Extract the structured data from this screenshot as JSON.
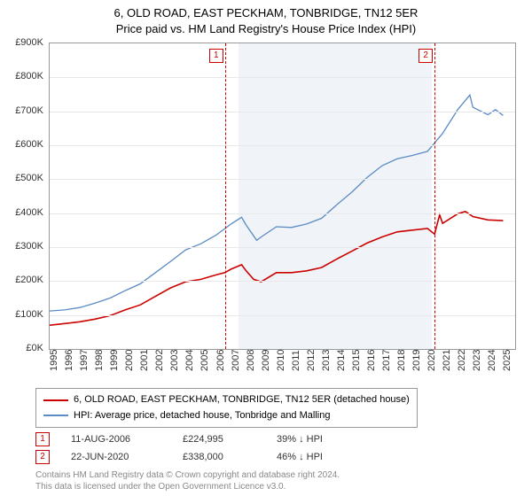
{
  "title_line1": "6, OLD ROAD, EAST PECKHAM, TONBRIDGE, TN12 5ER",
  "title_line2": "Price paid vs. HM Land Registry's House Price Index (HPI)",
  "chart": {
    "type": "line",
    "ylim": [
      0,
      900
    ],
    "ytick_step": 100,
    "y_prefix": "£",
    "y_suffix": "K",
    "xlim": [
      1995,
      2025.8
    ],
    "xticks": [
      1995,
      1996,
      1997,
      1998,
      1999,
      2000,
      2001,
      2002,
      2003,
      2004,
      2005,
      2006,
      2007,
      2008,
      2009,
      2010,
      2011,
      2012,
      2013,
      2014,
      2015,
      2016,
      2017,
      2018,
      2019,
      2020,
      2021,
      2022,
      2023,
      2024,
      2025
    ],
    "background_color": "#ffffff",
    "grid_color": "#e8e8e8",
    "shaded_region": {
      "x_from": 2007.5,
      "x_to": 2020.3,
      "color": "#f0f4f8"
    },
    "series": [
      {
        "key": "property",
        "color": "#cc0000",
        "line_width": 1.6,
        "data": [
          [
            1995,
            70
          ],
          [
            1996,
            75
          ],
          [
            1997,
            80
          ],
          [
            1998,
            88
          ],
          [
            1999,
            98
          ],
          [
            2000,
            115
          ],
          [
            2001,
            130
          ],
          [
            2002,
            155
          ],
          [
            2003,
            180
          ],
          [
            2004,
            198
          ],
          [
            2005,
            205
          ],
          [
            2006,
            218
          ],
          [
            2006.6,
            224.995
          ],
          [
            2007,
            235
          ],
          [
            2007.7,
            248
          ],
          [
            2008,
            230
          ],
          [
            2008.5,
            205
          ],
          [
            2009,
            198
          ],
          [
            2010,
            225
          ],
          [
            2011,
            225
          ],
          [
            2012,
            230
          ],
          [
            2013,
            240
          ],
          [
            2014,
            265
          ],
          [
            2015,
            288
          ],
          [
            2016,
            312
          ],
          [
            2017,
            330
          ],
          [
            2018,
            345
          ],
          [
            2019,
            350
          ],
          [
            2020,
            355
          ],
          [
            2020.47,
            338
          ],
          [
            2020.8,
            395
          ],
          [
            2021,
            370
          ],
          [
            2022,
            398
          ],
          [
            2022.5,
            405
          ],
          [
            2023,
            390
          ],
          [
            2024,
            380
          ],
          [
            2025,
            378
          ]
        ]
      },
      {
        "key": "hpi",
        "color": "#5b8bc4",
        "line_width": 1.3,
        "data": [
          [
            1995,
            112
          ],
          [
            1996,
            115
          ],
          [
            1997,
            122
          ],
          [
            1998,
            135
          ],
          [
            1999,
            150
          ],
          [
            2000,
            172
          ],
          [
            2001,
            192
          ],
          [
            2002,
            225
          ],
          [
            2003,
            258
          ],
          [
            2004,
            292
          ],
          [
            2005,
            310
          ],
          [
            2006,
            335
          ],
          [
            2007,
            368
          ],
          [
            2007.7,
            388
          ],
          [
            2008,
            365
          ],
          [
            2008.7,
            320
          ],
          [
            2009,
            330
          ],
          [
            2010,
            360
          ],
          [
            2011,
            358
          ],
          [
            2012,
            368
          ],
          [
            2013,
            385
          ],
          [
            2014,
            425
          ],
          [
            2015,
            462
          ],
          [
            2016,
            505
          ],
          [
            2017,
            540
          ],
          [
            2018,
            560
          ],
          [
            2019,
            570
          ],
          [
            2020,
            582
          ],
          [
            2021,
            635
          ],
          [
            2022,
            705
          ],
          [
            2022.8,
            748
          ],
          [
            2023,
            712
          ],
          [
            2024,
            690
          ],
          [
            2024.5,
            705
          ],
          [
            2025,
            688
          ]
        ]
      }
    ],
    "markers": [
      {
        "id": "1",
        "x": 2006.6,
        "line_color": "#cc0000"
      },
      {
        "id": "2",
        "x": 2020.47,
        "line_color": "#cc0000"
      }
    ]
  },
  "legend": [
    {
      "color": "#cc0000",
      "label": "6, OLD ROAD, EAST PECKHAM, TONBRIDGE, TN12 5ER (detached house)"
    },
    {
      "color": "#5b8bc4",
      "label": "HPI: Average price, detached house, Tonbridge and Malling"
    }
  ],
  "sales": [
    {
      "id": "1",
      "date": "11-AUG-2006",
      "price": "£224,995",
      "delta": "39% ↓ HPI"
    },
    {
      "id": "2",
      "date": "22-JUN-2020",
      "price": "£338,000",
      "delta": "46% ↓ HPI"
    }
  ],
  "footer_line1": "Contains HM Land Registry data © Crown copyright and database right 2024.",
  "footer_line2": "This data is licensed under the Open Government Licence v3.0."
}
